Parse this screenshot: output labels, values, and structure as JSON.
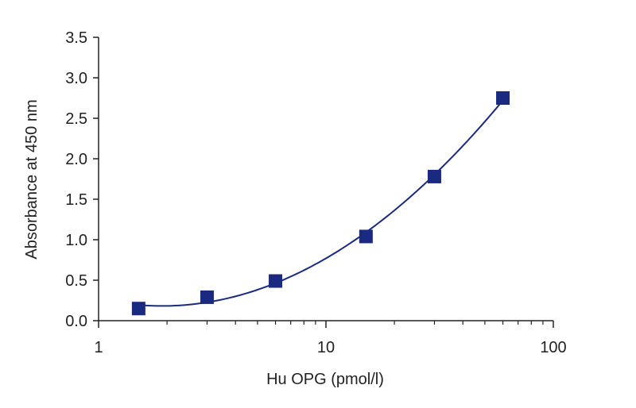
{
  "chart_data": {
    "type": "scatter",
    "title": "",
    "xlabel": "Hu OPG (pmol/l)",
    "ylabel": "Absorbance at 450 nm",
    "x_scale": "log",
    "xlim": [
      1,
      100
    ],
    "ylim": [
      0,
      3.5
    ],
    "x_ticks": [
      1,
      10,
      100
    ],
    "x_tick_labels": [
      "1",
      "10",
      "100"
    ],
    "y_ticks": [
      0,
      0.5,
      1,
      1.5,
      2,
      2.5,
      3,
      3.5
    ],
    "y_tick_labels": [
      "0.0",
      "0.5",
      "1.0",
      "1.5",
      "2.0",
      "2.5",
      "3.0",
      "3.5"
    ],
    "grid": false,
    "legend": "none",
    "series": [
      {
        "x": [
          1.5,
          3,
          6,
          15,
          30,
          60
        ],
        "y": [
          0.15,
          0.29,
          0.49,
          1.04,
          1.78,
          2.75
        ],
        "marker": "square",
        "fit_line": true,
        "color": "#1a2a80"
      }
    ],
    "colors": {
      "series": "#1a2a80",
      "axis": "#222222"
    }
  }
}
